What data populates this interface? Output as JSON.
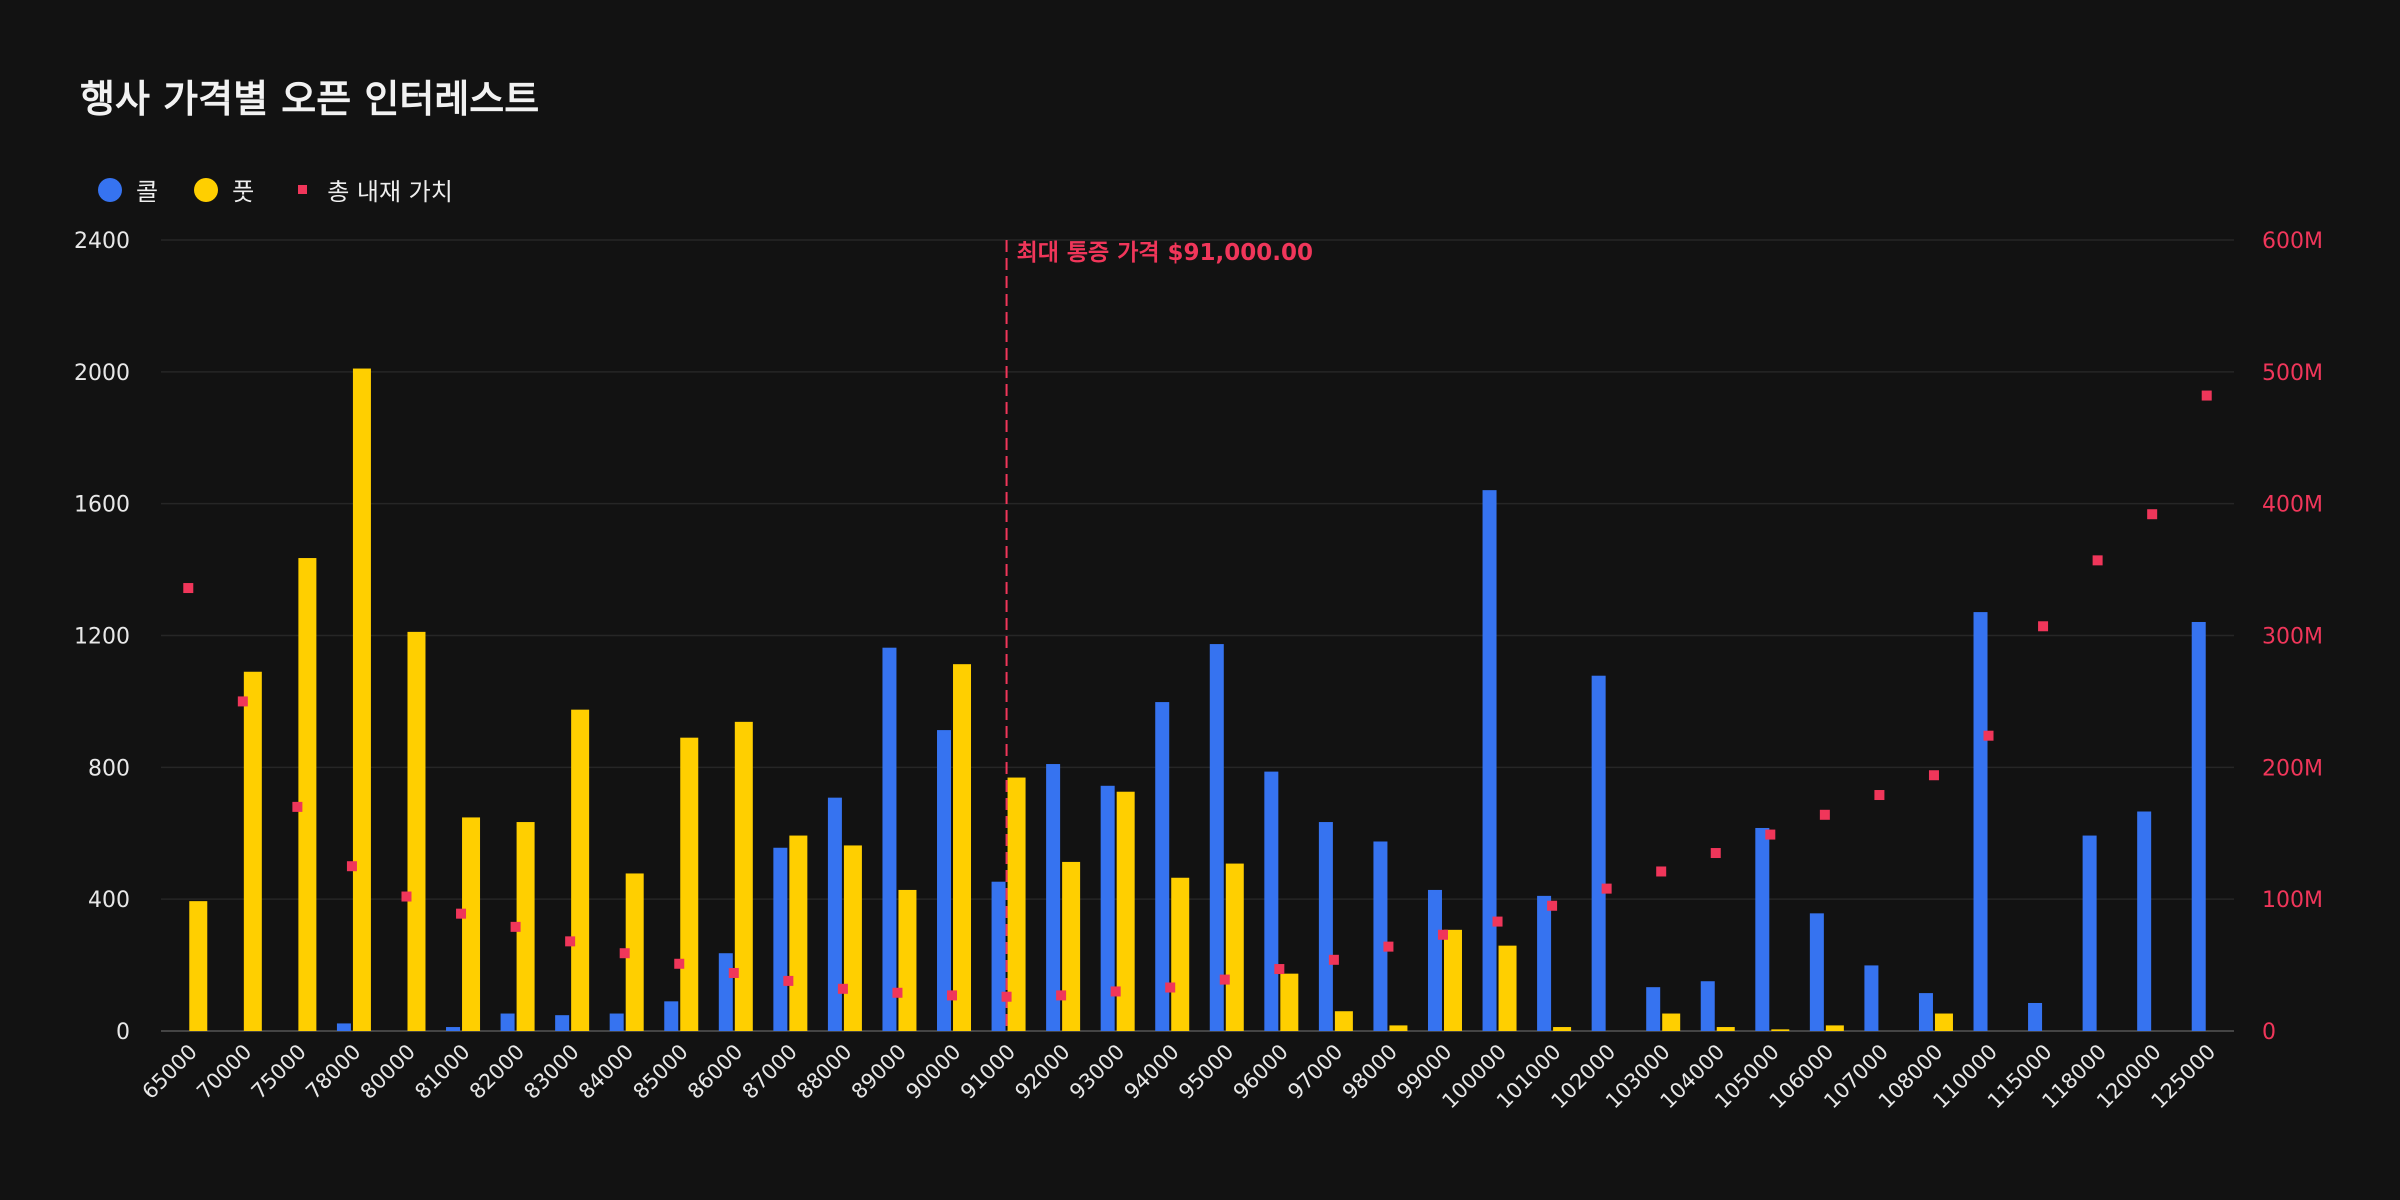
{
  "chart_data": {
    "type": "bar",
    "title": "행사 가격별 오픈 인터레스트",
    "legend": {
      "placement": "top-left"
    },
    "colors": {
      "call": "#3673f0",
      "put": "#ffcf00",
      "total": "#f0365a",
      "background": "#121212",
      "grid": "#262626"
    },
    "categories": [
      "65000",
      "70000",
      "75000",
      "78000",
      "80000",
      "81000",
      "82000",
      "83000",
      "84000",
      "85000",
      "86000",
      "87000",
      "88000",
      "89000",
      "90000",
      "91000",
      "92000",
      "93000",
      "94000",
      "95000",
      "96000",
      "97000",
      "98000",
      "99000",
      "100000",
      "101000",
      "102000",
      "103000",
      "104000",
      "105000",
      "106000",
      "107000",
      "108000",
      "110000",
      "115000",
      "118000",
      "120000",
      "125000"
    ],
    "series": [
      {
        "name": "콜",
        "type": "bar",
        "axis": "left",
        "values": [
          0,
          0,
          0,
          23,
          0,
          12,
          53,
          48,
          53,
          90,
          236,
          556,
          708,
          1163,
          913,
          453,
          810,
          744,
          998,
          1174,
          787,
          634,
          575,
          428,
          1641,
          410,
          1078,
          133,
          151,
          616,
          357,
          199,
          115,
          1271,
          85,
          593,
          666,
          1241
        ]
      },
      {
        "name": "풋",
        "type": "bar",
        "axis": "left",
        "values": [
          394,
          1090,
          1435,
          2010,
          1211,
          648,
          634,
          975,
          478,
          890,
          938,
          593,
          563,
          428,
          1113,
          769,
          513,
          726,
          465,
          508,
          174,
          60,
          17,
          307,
          259,
          12,
          0,
          53,
          12,
          5,
          17,
          0,
          53,
          0,
          0,
          0,
          0,
          0
        ]
      },
      {
        "name": "총 내재 가치",
        "type": "scatter",
        "axis": "right",
        "values": [
          336,
          250,
          170,
          125,
          102,
          89,
          79,
          68,
          59,
          51,
          44,
          38,
          32,
          29,
          27,
          26,
          27,
          30,
          33,
          39,
          47,
          54,
          64,
          73,
          83,
          95,
          108,
          121,
          135,
          149,
          164,
          179,
          194,
          224,
          307,
          357,
          392,
          482
        ]
      }
    ],
    "y_left": {
      "range": [
        0,
        2400
      ],
      "ticks": [
        "0",
        "400",
        "800",
        "1200",
        "1600",
        "2000",
        "2400"
      ]
    },
    "y_right": {
      "range": [
        0,
        600
      ],
      "unit": "M",
      "ticks": [
        "0",
        "100M",
        "200M",
        "300M",
        "400M",
        "500M",
        "600M"
      ]
    },
    "grid": true,
    "annotation": {
      "category": "91000",
      "label": "최대 통증 가격 $91,000.00"
    }
  }
}
